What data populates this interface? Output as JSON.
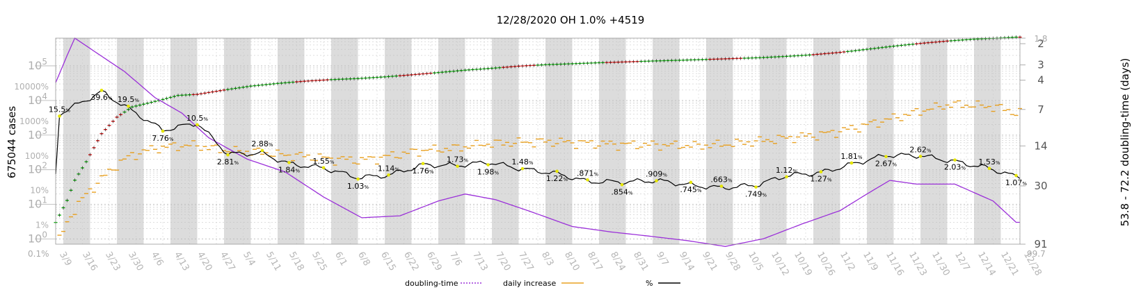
{
  "chart_data": {
    "type": "line",
    "title": "12/28/2020 OH 1.0% +4519",
    "ylabel_left": "675044 cases",
    "ylabel_right": "53.8 - 72.2 doubling-time (days)",
    "x_tick_labels": [
      "3/9",
      "3/16",
      "3/23",
      "3/30",
      "4/6",
      "4/13",
      "4/20",
      "4/27",
      "5/4",
      "5/11",
      "5/18",
      "5/25",
      "6/1",
      "6/8",
      "6/15",
      "6/22",
      "6/29",
      "7/6",
      "7/13",
      "7/20",
      "7/27",
      "8/3",
      "8/10",
      "8/17",
      "8/24",
      "8/31",
      "9/7",
      "9/14",
      "9/21",
      "9/28",
      "10/5",
      "10/12",
      "10/19",
      "10/26",
      "11/2",
      "11/9",
      "11/16",
      "11/23",
      "11/30",
      "12/7",
      "12/14",
      "12/21",
      "12/28"
    ],
    "x_corner_labels": {
      "left": "0.1%",
      "right": "99.7"
    },
    "y_left_ticks": [
      {
        "base": "10",
        "exp": "0",
        "value": 1
      },
      {
        "base": "10",
        "exp": "1",
        "value": 10
      },
      {
        "base": "10",
        "exp": "2",
        "value": 100
      },
      {
        "base": "10",
        "exp": "3",
        "value": 1000
      },
      {
        "base": "10",
        "exp": "4",
        "value": 10000
      },
      {
        "base": "10",
        "exp": "5",
        "value": 100000
      }
    ],
    "y_left_pct_ticks": [
      {
        "label": "1%",
        "value": 2.5
      },
      {
        "label": "10%",
        "value": 25
      },
      {
        "label": "100%",
        "value": 250
      },
      {
        "label": "1000%",
        "value": 2500
      },
      {
        "label": "10000%",
        "value": 25000
      }
    ],
    "y_right_ticks": [
      {
        "label": "1.8",
        "value": 1.8
      },
      {
        "label": "2",
        "value": 2
      },
      {
        "label": "3",
        "value": 3
      },
      {
        "label": "4",
        "value": 4
      },
      {
        "label": "7",
        "value": 7
      },
      {
        "label": "14",
        "value": 14
      },
      {
        "label": "30",
        "value": 30
      },
      {
        "label": "91",
        "value": 91
      }
    ],
    "legend": [
      {
        "label": "doubling-time",
        "color": "#9b30d9",
        "style": "dotted"
      },
      {
        "label": "daily increase",
        "color": "#e8a020",
        "style": "solid"
      },
      {
        "label": "%",
        "color": "#000000",
        "style": "solid"
      }
    ],
    "pct_annotations": [
      {
        "day": 1,
        "label": "15.5"
      },
      {
        "day": 12,
        "label": "39.6"
      },
      {
        "day": 19,
        "label": "19.5"
      },
      {
        "day": 28,
        "label": "7.76"
      },
      {
        "day": 37,
        "label": "10.5"
      },
      {
        "day": 45,
        "label": "2.81"
      },
      {
        "day": 54,
        "label": "2.88"
      },
      {
        "day": 61,
        "label": "1.84"
      },
      {
        "day": 70,
        "label": "1.55"
      },
      {
        "day": 79,
        "label": "1.03"
      },
      {
        "day": 87,
        "label": "1.14"
      },
      {
        "day": 96,
        "label": "1.76"
      },
      {
        "day": 105,
        "label": "1.73"
      },
      {
        "day": 113,
        "label": "1.98"
      },
      {
        "day": 122,
        "label": "1.48"
      },
      {
        "day": 131,
        "label": "1.22"
      },
      {
        "day": 139,
        "label": ".871"
      },
      {
        "day": 148,
        "label": ".854"
      },
      {
        "day": 157,
        "label": ".909"
      },
      {
        "day": 166,
        "label": ".745"
      },
      {
        "day": 174,
        "label": ".663"
      },
      {
        "day": 183,
        "label": ".749"
      },
      {
        "day": 191,
        "label": "1.12"
      },
      {
        "day": 200,
        "label": "1.27"
      },
      {
        "day": 208,
        "label": "1.81"
      },
      {
        "day": 217,
        "label": "2.67"
      },
      {
        "day": 226,
        "label": "2.62"
      },
      {
        "day": 235,
        "label": "2.03"
      },
      {
        "day": 244,
        "label": "1.53"
      },
      {
        "day": 251,
        "label": "1.07"
      }
    ],
    "series": [
      {
        "name": "cases",
        "color_up": "#cc0000",
        "color_down": "#00aa00",
        "points": [
          [
            0,
            3
          ],
          [
            3,
            13
          ],
          [
            5,
            50
          ],
          [
            8,
            170
          ],
          [
            12,
            1100
          ],
          [
            16,
            3300
          ],
          [
            20,
            6500
          ],
          [
            27,
            10000
          ],
          [
            32,
            14000
          ],
          [
            37,
            15000
          ],
          [
            44,
            20000
          ],
          [
            51,
            26000
          ],
          [
            58,
            31000
          ],
          [
            65,
            36000
          ],
          [
            72,
            40000
          ],
          [
            79,
            43000
          ],
          [
            86,
            48000
          ],
          [
            93,
            55000
          ],
          [
            100,
            64000
          ],
          [
            107,
            75000
          ],
          [
            114,
            85000
          ],
          [
            121,
            98000
          ],
          [
            128,
            108000
          ],
          [
            135,
            115000
          ],
          [
            142,
            123000
          ],
          [
            149,
            130000
          ],
          [
            156,
            138000
          ],
          [
            163,
            145000
          ],
          [
            170,
            153000
          ],
          [
            177,
            162000
          ],
          [
            184,
            172000
          ],
          [
            191,
            188000
          ],
          [
            198,
            210000
          ],
          [
            205,
            245000
          ],
          [
            212,
            300000
          ],
          [
            219,
            370000
          ],
          [
            226,
            445000
          ],
          [
            233,
            520000
          ],
          [
            240,
            590000
          ],
          [
            247,
            640000
          ],
          [
            251,
            675044
          ]
        ]
      },
      {
        "name": "doubling-time",
        "points": [
          [
            0,
            4.2
          ],
          [
            3,
            2.5
          ],
          [
            5,
            1.8
          ],
          [
            10,
            2.3
          ],
          [
            18,
            3.4
          ],
          [
            26,
            5.6
          ],
          [
            33,
            7.5
          ],
          [
            40,
            12
          ],
          [
            50,
            18
          ],
          [
            60,
            23
          ],
          [
            70,
            37
          ],
          [
            80,
            55
          ],
          [
            90,
            53
          ],
          [
            100,
            40
          ],
          [
            107,
            35
          ],
          [
            115,
            39
          ],
          [
            125,
            50
          ],
          [
            135,
            65
          ],
          [
            145,
            72
          ],
          [
            155,
            78
          ],
          [
            165,
            85
          ],
          [
            175,
            95
          ],
          [
            185,
            82
          ],
          [
            195,
            62
          ],
          [
            205,
            48
          ],
          [
            212,
            35
          ],
          [
            218,
            27
          ],
          [
            225,
            29
          ],
          [
            235,
            29
          ],
          [
            245,
            40
          ],
          [
            251,
            60
          ]
        ]
      },
      {
        "name": "daily increase",
        "color": "#e8a020",
        "points": [
          [
            1,
            1
          ],
          [
            4,
            5
          ],
          [
            8,
            20
          ],
          [
            12,
            55
          ],
          [
            16,
            140
          ],
          [
            20,
            270
          ],
          [
            26,
            420
          ],
          [
            31,
            490
          ],
          [
            36,
            520
          ],
          [
            40,
            440
          ],
          [
            46,
            350
          ],
          [
            52,
            340
          ],
          [
            58,
            280
          ],
          [
            65,
            250
          ],
          [
            72,
            210
          ],
          [
            80,
            190
          ],
          [
            88,
            260
          ],
          [
            96,
            370
          ],
          [
            104,
            420
          ],
          [
            112,
            560
          ],
          [
            120,
            620
          ],
          [
            128,
            660
          ],
          [
            136,
            620
          ],
          [
            144,
            560
          ],
          [
            152,
            540
          ],
          [
            160,
            520
          ],
          [
            168,
            500
          ],
          [
            176,
            560
          ],
          [
            184,
            680
          ],
          [
            192,
            860
          ],
          [
            200,
            1050
          ],
          [
            208,
            1550
          ],
          [
            216,
            2600
          ],
          [
            222,
            3800
          ],
          [
            228,
            5700
          ],
          [
            234,
            7800
          ],
          [
            240,
            7400
          ],
          [
            246,
            6500
          ],
          [
            251,
            4519
          ]
        ]
      }
    ]
  }
}
